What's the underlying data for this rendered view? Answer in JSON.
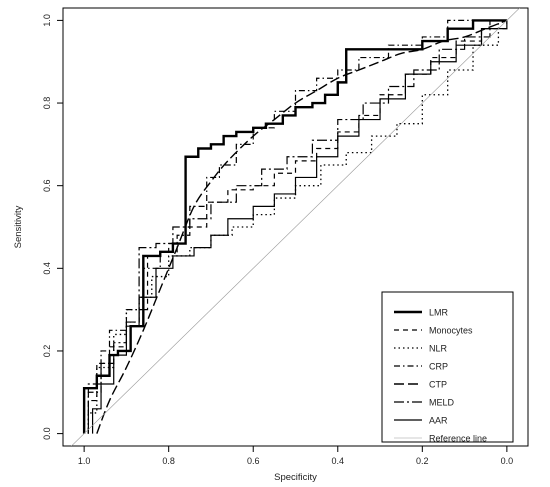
{
  "chart_data": {
    "type": "line",
    "title": "",
    "xlabel": "Specificity",
    "ylabel": "Sensitivity",
    "xlim": [
      1.05,
      -0.05
    ],
    "ylim": [
      -0.03,
      1.03
    ],
    "x_reversed": true,
    "xticks": [
      1.0,
      0.8,
      0.6,
      0.4,
      0.2,
      0.0
    ],
    "xtick_labels": [
      "1.0",
      "0.8",
      "0.6",
      "0.4",
      "0.2",
      "0.0"
    ],
    "yticks": [
      0.0,
      0.2,
      0.4,
      0.6,
      0.8,
      1.0
    ],
    "ytick_labels": [
      "0.0",
      "0.2",
      "0.4",
      "0.6",
      "0.8",
      "1.0"
    ],
    "grid": false,
    "legend_position": "bottom-right",
    "series": [
      {
        "name": "LMR",
        "dash": "solid",
        "width": 2.4,
        "points": [
          [
            1.0,
            0.0
          ],
          [
            1.0,
            0.11
          ],
          [
            0.97,
            0.11
          ],
          [
            0.97,
            0.14
          ],
          [
            0.94,
            0.14
          ],
          [
            0.94,
            0.19
          ],
          [
            0.92,
            0.19
          ],
          [
            0.92,
            0.2
          ],
          [
            0.89,
            0.2
          ],
          [
            0.89,
            0.26
          ],
          [
            0.86,
            0.26
          ],
          [
            0.86,
            0.43
          ],
          [
            0.82,
            0.43
          ],
          [
            0.82,
            0.44
          ],
          [
            0.79,
            0.44
          ],
          [
            0.79,
            0.46
          ],
          [
            0.76,
            0.46
          ],
          [
            0.76,
            0.67
          ],
          [
            0.73,
            0.67
          ],
          [
            0.73,
            0.69
          ],
          [
            0.7,
            0.69
          ],
          [
            0.7,
            0.7
          ],
          [
            0.67,
            0.7
          ],
          [
            0.67,
            0.72
          ],
          [
            0.64,
            0.72
          ],
          [
            0.64,
            0.73
          ],
          [
            0.6,
            0.73
          ],
          [
            0.6,
            0.74
          ],
          [
            0.57,
            0.74
          ],
          [
            0.57,
            0.75
          ],
          [
            0.53,
            0.75
          ],
          [
            0.53,
            0.77
          ],
          [
            0.5,
            0.77
          ],
          [
            0.5,
            0.79
          ],
          [
            0.46,
            0.79
          ],
          [
            0.46,
            0.8
          ],
          [
            0.43,
            0.8
          ],
          [
            0.43,
            0.82
          ],
          [
            0.4,
            0.82
          ],
          [
            0.4,
            0.85
          ],
          [
            0.38,
            0.85
          ],
          [
            0.38,
            0.93
          ],
          [
            0.2,
            0.93
          ],
          [
            0.2,
            0.95
          ],
          [
            0.14,
            0.95
          ],
          [
            0.14,
            0.98
          ],
          [
            0.08,
            0.98
          ],
          [
            0.08,
            1.0
          ],
          [
            0.0,
            1.0
          ]
        ]
      },
      {
        "name": "Monocytes",
        "dash": "5,4",
        "width": 1.2,
        "points": [
          [
            0.99,
            0.0
          ],
          [
            0.99,
            0.08
          ],
          [
            0.97,
            0.08
          ],
          [
            0.97,
            0.17
          ],
          [
            0.94,
            0.17
          ],
          [
            0.94,
            0.21
          ],
          [
            0.9,
            0.21
          ],
          [
            0.9,
            0.27
          ],
          [
            0.87,
            0.27
          ],
          [
            0.87,
            0.3
          ],
          [
            0.85,
            0.3
          ],
          [
            0.85,
            0.43
          ],
          [
            0.82,
            0.43
          ],
          [
            0.82,
            0.44
          ],
          [
            0.8,
            0.44
          ],
          [
            0.8,
            0.46
          ],
          [
            0.76,
            0.46
          ],
          [
            0.76,
            0.5
          ],
          [
            0.71,
            0.5
          ],
          [
            0.71,
            0.56
          ],
          [
            0.66,
            0.56
          ],
          [
            0.66,
            0.59
          ],
          [
            0.6,
            0.59
          ],
          [
            0.6,
            0.6
          ],
          [
            0.55,
            0.6
          ],
          [
            0.55,
            0.63
          ],
          [
            0.5,
            0.63
          ],
          [
            0.5,
            0.66
          ],
          [
            0.45,
            0.66
          ],
          [
            0.45,
            0.69
          ],
          [
            0.4,
            0.69
          ],
          [
            0.4,
            0.73
          ],
          [
            0.35,
            0.73
          ],
          [
            0.35,
            0.77
          ],
          [
            0.3,
            0.77
          ],
          [
            0.3,
            0.82
          ],
          [
            0.24,
            0.82
          ],
          [
            0.24,
            0.87
          ],
          [
            0.18,
            0.87
          ],
          [
            0.18,
            0.91
          ],
          [
            0.12,
            0.91
          ],
          [
            0.12,
            0.95
          ],
          [
            0.06,
            0.95
          ],
          [
            0.06,
            0.98
          ],
          [
            0.0,
            0.98
          ],
          [
            0.0,
            1.0
          ]
        ]
      },
      {
        "name": "NLR",
        "dash": "1.5,3",
        "width": 1.3,
        "points": [
          [
            0.99,
            0.0
          ],
          [
            0.99,
            0.05
          ],
          [
            0.97,
            0.05
          ],
          [
            0.97,
            0.16
          ],
          [
            0.93,
            0.16
          ],
          [
            0.93,
            0.24
          ],
          [
            0.9,
            0.24
          ],
          [
            0.9,
            0.3
          ],
          [
            0.87,
            0.3
          ],
          [
            0.87,
            0.33
          ],
          [
            0.84,
            0.33
          ],
          [
            0.84,
            0.38
          ],
          [
            0.8,
            0.38
          ],
          [
            0.8,
            0.43
          ],
          [
            0.75,
            0.43
          ],
          [
            0.75,
            0.45
          ],
          [
            0.7,
            0.45
          ],
          [
            0.7,
            0.48
          ],
          [
            0.65,
            0.48
          ],
          [
            0.65,
            0.5
          ],
          [
            0.6,
            0.5
          ],
          [
            0.6,
            0.53
          ],
          [
            0.55,
            0.53
          ],
          [
            0.55,
            0.57
          ],
          [
            0.5,
            0.57
          ],
          [
            0.5,
            0.6
          ],
          [
            0.44,
            0.6
          ],
          [
            0.44,
            0.65
          ],
          [
            0.38,
            0.65
          ],
          [
            0.38,
            0.68
          ],
          [
            0.32,
            0.68
          ],
          [
            0.32,
            0.72
          ],
          [
            0.26,
            0.72
          ],
          [
            0.26,
            0.75
          ],
          [
            0.2,
            0.75
          ],
          [
            0.2,
            0.82
          ],
          [
            0.14,
            0.82
          ],
          [
            0.14,
            0.88
          ],
          [
            0.08,
            0.88
          ],
          [
            0.08,
            0.94
          ],
          [
            0.02,
            0.94
          ],
          [
            0.02,
            1.0
          ],
          [
            0.0,
            1.0
          ]
        ]
      },
      {
        "name": "CRP",
        "dash": "6,3,1.5,3",
        "width": 1.2,
        "points": [
          [
            0.99,
            0.0
          ],
          [
            0.99,
            0.1
          ],
          [
            0.96,
            0.1
          ],
          [
            0.96,
            0.2
          ],
          [
            0.94,
            0.2
          ],
          [
            0.94,
            0.25
          ],
          [
            0.9,
            0.25
          ],
          [
            0.9,
            0.3
          ],
          [
            0.86,
            0.3
          ],
          [
            0.86,
            0.4
          ],
          [
            0.82,
            0.4
          ],
          [
            0.82,
            0.44
          ],
          [
            0.78,
            0.44
          ],
          [
            0.78,
            0.48
          ],
          [
            0.75,
            0.48
          ],
          [
            0.75,
            0.55
          ],
          [
            0.71,
            0.55
          ],
          [
            0.71,
            0.62
          ],
          [
            0.68,
            0.62
          ],
          [
            0.68,
            0.65
          ],
          [
            0.64,
            0.65
          ],
          [
            0.64,
            0.7
          ],
          [
            0.6,
            0.7
          ],
          [
            0.6,
            0.74
          ],
          [
            0.55,
            0.74
          ],
          [
            0.55,
            0.78
          ],
          [
            0.5,
            0.78
          ],
          [
            0.5,
            0.83
          ],
          [
            0.45,
            0.83
          ],
          [
            0.45,
            0.86
          ],
          [
            0.4,
            0.86
          ],
          [
            0.4,
            0.88
          ],
          [
            0.35,
            0.88
          ],
          [
            0.35,
            0.91
          ],
          [
            0.28,
            0.91
          ],
          [
            0.28,
            0.94
          ],
          [
            0.2,
            0.94
          ],
          [
            0.2,
            0.96
          ],
          [
            0.14,
            0.96
          ],
          [
            0.14,
            1.0
          ],
          [
            0.0,
            1.0
          ]
        ]
      },
      {
        "name": "CTP",
        "dash": "10,4",
        "width": 1.4,
        "smooth": true,
        "points": [
          [
            0.97,
            0.0
          ],
          [
            0.94,
            0.08
          ],
          [
            0.9,
            0.16
          ],
          [
            0.86,
            0.25
          ],
          [
            0.82,
            0.35
          ],
          [
            0.78,
            0.45
          ],
          [
            0.74,
            0.55
          ],
          [
            0.7,
            0.61
          ],
          [
            0.66,
            0.66
          ],
          [
            0.6,
            0.72
          ],
          [
            0.55,
            0.76
          ],
          [
            0.5,
            0.8
          ],
          [
            0.45,
            0.83
          ],
          [
            0.4,
            0.86
          ],
          [
            0.35,
            0.88
          ],
          [
            0.3,
            0.9
          ],
          [
            0.25,
            0.92
          ],
          [
            0.2,
            0.93
          ],
          [
            0.15,
            0.95
          ],
          [
            0.1,
            0.96
          ],
          [
            0.05,
            0.98
          ],
          [
            0.0,
            1.0
          ]
        ]
      },
      {
        "name": "MELD",
        "dash": "10,3,2,3",
        "width": 1.2,
        "points": [
          [
            0.99,
            0.0
          ],
          [
            0.99,
            0.12
          ],
          [
            0.96,
            0.12
          ],
          [
            0.96,
            0.17
          ],
          [
            0.93,
            0.17
          ],
          [
            0.93,
            0.22
          ],
          [
            0.9,
            0.22
          ],
          [
            0.9,
            0.27
          ],
          [
            0.87,
            0.27
          ],
          [
            0.87,
            0.45
          ],
          [
            0.83,
            0.45
          ],
          [
            0.83,
            0.46
          ],
          [
            0.79,
            0.46
          ],
          [
            0.79,
            0.5
          ],
          [
            0.75,
            0.5
          ],
          [
            0.75,
            0.52
          ],
          [
            0.7,
            0.52
          ],
          [
            0.7,
            0.56
          ],
          [
            0.64,
            0.56
          ],
          [
            0.64,
            0.6
          ],
          [
            0.58,
            0.6
          ],
          [
            0.58,
            0.64
          ],
          [
            0.52,
            0.64
          ],
          [
            0.52,
            0.67
          ],
          [
            0.46,
            0.67
          ],
          [
            0.46,
            0.71
          ],
          [
            0.4,
            0.71
          ],
          [
            0.4,
            0.76
          ],
          [
            0.34,
            0.76
          ],
          [
            0.34,
            0.8
          ],
          [
            0.28,
            0.8
          ],
          [
            0.28,
            0.84
          ],
          [
            0.22,
            0.84
          ],
          [
            0.22,
            0.88
          ],
          [
            0.16,
            0.88
          ],
          [
            0.16,
            0.93
          ],
          [
            0.1,
            0.93
          ],
          [
            0.1,
            0.96
          ],
          [
            0.04,
            0.96
          ],
          [
            0.04,
            1.0
          ],
          [
            0.0,
            1.0
          ]
        ]
      },
      {
        "name": "AAR",
        "dash": "solid",
        "width": 1.2,
        "points": [
          [
            0.98,
            0.0
          ],
          [
            0.98,
            0.06
          ],
          [
            0.96,
            0.06
          ],
          [
            0.96,
            0.12
          ],
          [
            0.93,
            0.12
          ],
          [
            0.93,
            0.19
          ],
          [
            0.9,
            0.19
          ],
          [
            0.9,
            0.26
          ],
          [
            0.87,
            0.26
          ],
          [
            0.87,
            0.33
          ],
          [
            0.83,
            0.33
          ],
          [
            0.83,
            0.4
          ],
          [
            0.79,
            0.4
          ],
          [
            0.79,
            0.43
          ],
          [
            0.74,
            0.43
          ],
          [
            0.74,
            0.45
          ],
          [
            0.7,
            0.45
          ],
          [
            0.7,
            0.48
          ],
          [
            0.66,
            0.48
          ],
          [
            0.66,
            0.52
          ],
          [
            0.6,
            0.52
          ],
          [
            0.6,
            0.55
          ],
          [
            0.55,
            0.55
          ],
          [
            0.55,
            0.58
          ],
          [
            0.5,
            0.58
          ],
          [
            0.5,
            0.62
          ],
          [
            0.45,
            0.62
          ],
          [
            0.45,
            0.67
          ],
          [
            0.4,
            0.67
          ],
          [
            0.4,
            0.72
          ],
          [
            0.35,
            0.72
          ],
          [
            0.35,
            0.76
          ],
          [
            0.3,
            0.76
          ],
          [
            0.3,
            0.81
          ],
          [
            0.24,
            0.81
          ],
          [
            0.24,
            0.87
          ],
          [
            0.18,
            0.87
          ],
          [
            0.18,
            0.9
          ],
          [
            0.12,
            0.9
          ],
          [
            0.12,
            0.94
          ],
          [
            0.06,
            0.94
          ],
          [
            0.06,
            0.98
          ],
          [
            0.0,
            0.98
          ],
          [
            0.0,
            1.0
          ]
        ]
      },
      {
        "name": "Reference line",
        "dash": "solid",
        "width": 0.6,
        "color": "#999999",
        "points": [
          [
            1.05,
            -0.05
          ],
          [
            -0.05,
            1.05
          ]
        ]
      }
    ]
  }
}
